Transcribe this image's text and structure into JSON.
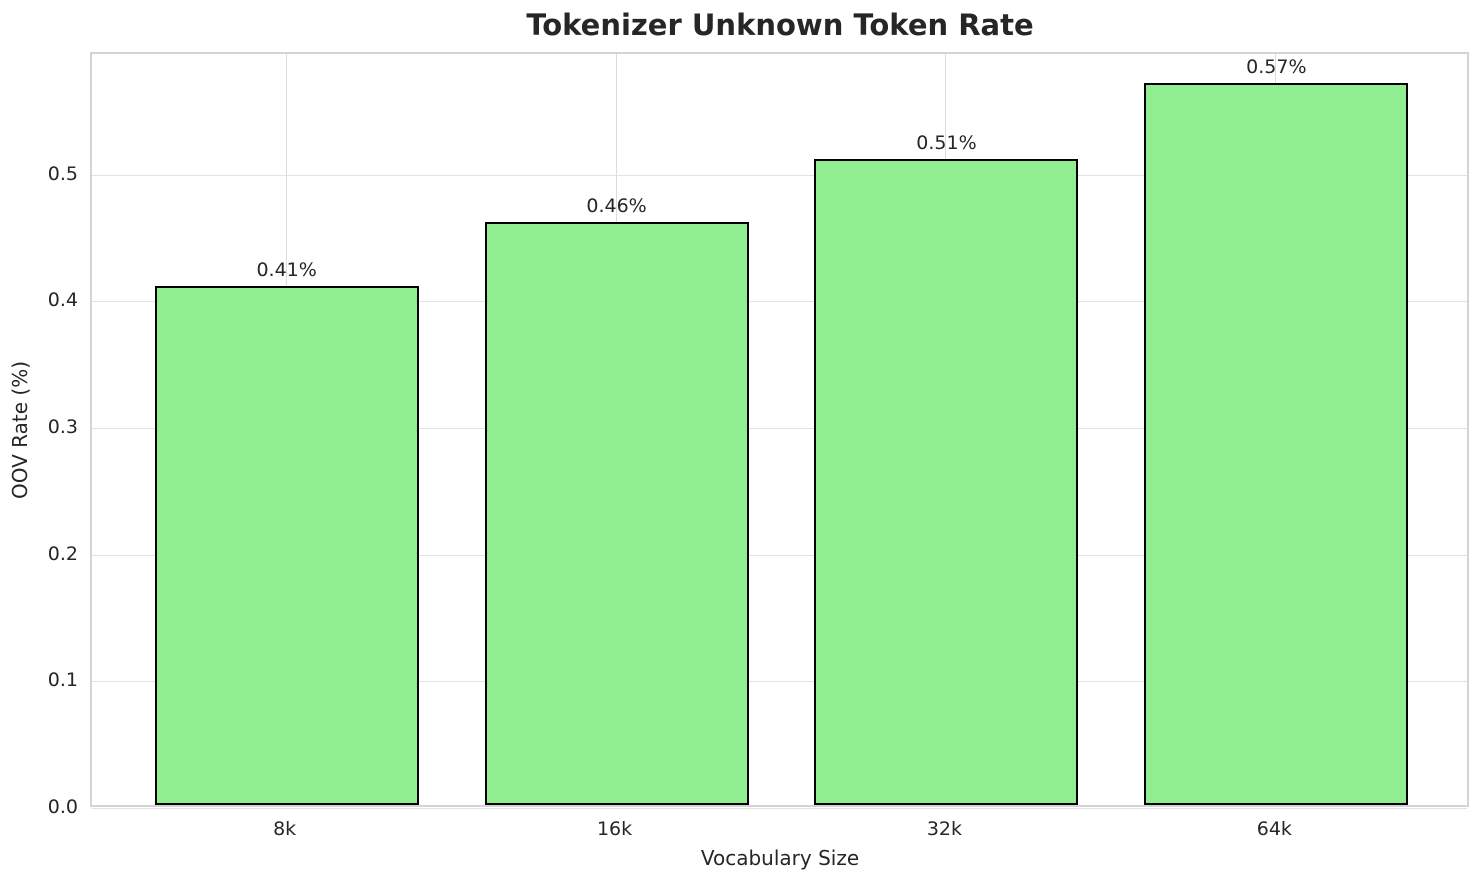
{
  "title": "Tokenizer Unknown Token Rate",
  "chart_data": {
    "type": "bar",
    "title": "Tokenizer Unknown Token Rate",
    "xlabel": "Vocabulary Size",
    "ylabel": "OOV Rate (%)",
    "categories": [
      "8k",
      "16k",
      "32k",
      "64k"
    ],
    "values": [
      0.41,
      0.46,
      0.51,
      0.57
    ],
    "bar_labels": [
      "0.41%",
      "0.46%",
      "0.51%",
      "0.57%"
    ],
    "yticks": [
      0.0,
      0.1,
      0.2,
      0.3,
      0.4,
      0.5
    ],
    "ytick_labels": [
      "0.0",
      "0.1",
      "0.2",
      "0.3",
      "0.4",
      "0.5"
    ],
    "ylim": [
      0,
      0.596
    ],
    "grid": true,
    "legend": "none",
    "bar_color": "#90ee90",
    "bar_edge_color": "#000000",
    "background_color": "#ffffff",
    "grid_color": "#e2e2e2",
    "axes_edge_color": "#d4d4d4",
    "text_color": "#262626"
  }
}
